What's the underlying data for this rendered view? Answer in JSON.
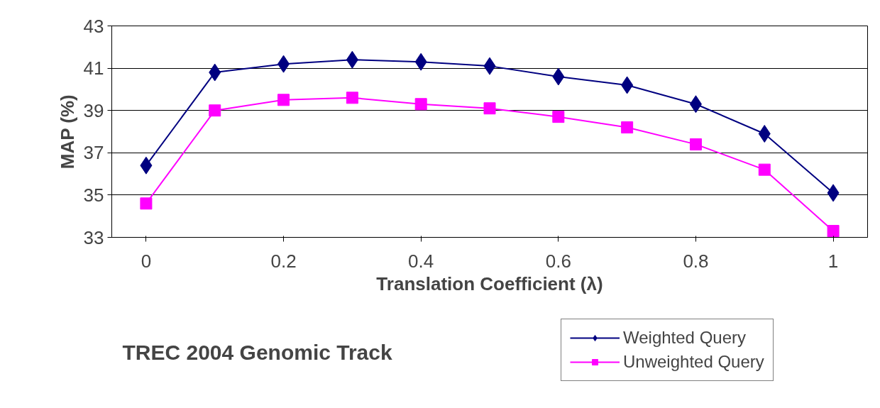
{
  "chart_data": {
    "type": "line",
    "title": "TREC 2004 Genomic Track",
    "xlabel": "Translation Coefficient (λ)",
    "ylabel": "MAP (%)",
    "x": [
      0,
      0.1,
      0.2,
      0.3,
      0.4,
      0.5,
      0.6,
      0.7,
      0.8,
      0.9,
      1
    ],
    "series": [
      {
        "name": "Weighted Query",
        "color": "#000080",
        "marker": "diamond",
        "values": [
          36.4,
          40.8,
          41.2,
          41.4,
          41.3,
          41.1,
          40.6,
          40.2,
          39.3,
          37.9,
          35.1
        ]
      },
      {
        "name": "Unweighted Query",
        "color": "#ff00ff",
        "marker": "square",
        "values": [
          34.6,
          39.0,
          39.5,
          39.6,
          39.3,
          39.1,
          38.7,
          38.2,
          37.4,
          36.2,
          33.3
        ]
      }
    ],
    "xlim": [
      -0.05,
      1.05
    ],
    "xticks": [
      0,
      0.2,
      0.4,
      0.6,
      0.8,
      1
    ],
    "ylim": [
      33,
      43
    ],
    "yticks": [
      33,
      35,
      37,
      39,
      41,
      43
    ],
    "grid": "y",
    "legend": "bottom right"
  }
}
